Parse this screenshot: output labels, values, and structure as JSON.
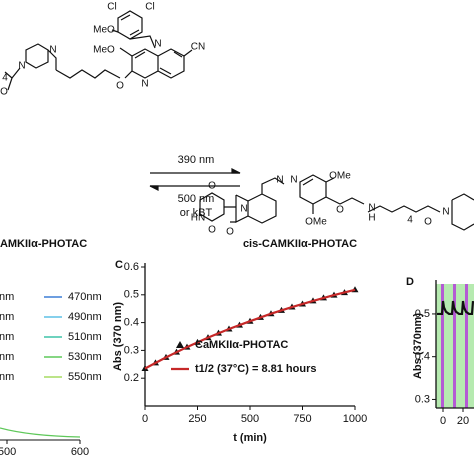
{
  "top_structure": {
    "atoms": [
      "Cl",
      "Cl",
      "MeO",
      "N",
      "MeO",
      "CN",
      "N",
      "O",
      "N",
      "N",
      "O",
      "4"
    ]
  },
  "reaction": {
    "forward": "390 nm",
    "reverse": "500 nm",
    "reverse_alt": "or kBT",
    "trans_label": "CAMKIIα-PHOTAC",
    "cis_label": "cis-CAMKIIα-PHOTAC"
  },
  "cis_structure": {
    "atoms": [
      "O",
      "HN",
      "O",
      "N",
      "O",
      "N",
      "N",
      "OMe",
      "OMe",
      "O",
      "H",
      "N",
      "4",
      "O",
      "N"
    ]
  },
  "partial_panel": {
    "legend_left": [
      "nm",
      "nm",
      "nm",
      "nm",
      "nm"
    ],
    "legend_right": [
      "470nm",
      "490nm",
      "510nm",
      "530nm",
      "550nm"
    ],
    "colors": [
      "#3d7fd6",
      "#5fc0e6",
      "#3fc4a8",
      "#5fc85a",
      "#a6dc62"
    ],
    "x_tick_labels": [
      "500",
      "600"
    ]
  },
  "chart_data": [
    {
      "type": "line",
      "panel_label": "C",
      "x_label": "t (min)",
      "y_label": "Abs (370 nm)",
      "xlim": [
        0,
        1000
      ],
      "xticks": [
        0,
        250,
        500,
        750,
        1000
      ],
      "ylim": [
        0.1,
        0.6
      ],
      "yticks": [
        0.2,
        0.3,
        0.4,
        0.5,
        0.6
      ],
      "series": [
        {
          "name": "CaMKIIα-PHOTAC",
          "type": "scatter",
          "color": "#111111",
          "x": [
            0,
            50,
            100,
            150,
            200,
            250,
            300,
            350,
            400,
            450,
            500,
            550,
            600,
            650,
            700,
            750,
            800,
            850,
            900,
            950,
            1000
          ],
          "values": [
            0.235,
            0.255,
            0.275,
            0.294,
            0.312,
            0.329,
            0.346,
            0.362,
            0.377,
            0.391,
            0.405,
            0.419,
            0.432,
            0.444,
            0.456,
            0.467,
            0.478,
            0.489,
            0.499,
            0.508,
            0.518
          ]
        },
        {
          "name": "t1/2 (37°C) = 8.81 hours",
          "type": "line",
          "color": "#c62828",
          "x": [
            0,
            100,
            200,
            300,
            400,
            500,
            600,
            700,
            800,
            900,
            1000
          ],
          "values": [
            0.235,
            0.275,
            0.312,
            0.346,
            0.377,
            0.405,
            0.432,
            0.456,
            0.478,
            0.499,
            0.518
          ]
        }
      ]
    },
    {
      "type": "line",
      "panel_label": "D",
      "y_label": "Abs (370nm)",
      "xlim": [
        -7,
        31
      ],
      "xticks": [
        0,
        20
      ],
      "ylim": [
        0.28,
        0.57
      ],
      "yticks": [
        0.3,
        0.4,
        0.5
      ],
      "series": [
        {
          "type": "line",
          "color": "#111111",
          "x": [
            -6,
            -1,
            0,
            1,
            3,
            6,
            9,
            10,
            11,
            13,
            16,
            19,
            20,
            21,
            23,
            26,
            29,
            30
          ],
          "values": [
            0.5,
            0.5,
            0.53,
            0.515,
            0.505,
            0.5,
            0.5,
            0.53,
            0.515,
            0.505,
            0.5,
            0.5,
            0.53,
            0.515,
            0.505,
            0.5,
            0.5,
            0.53
          ]
        }
      ]
    }
  ]
}
